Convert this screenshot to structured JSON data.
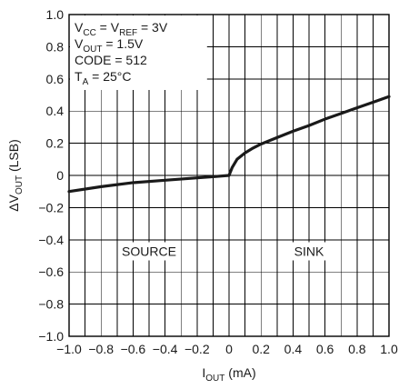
{
  "chart_data": {
    "type": "line",
    "title": "",
    "xlabel": {
      "main": "I",
      "sub": "OUT",
      "tail": " (mA)"
    },
    "ylabel": {
      "pre": "ΔV",
      "sub": "OUT",
      "tail": " (LSB)"
    },
    "xlim": [
      -1.0,
      1.0
    ],
    "ylim": [
      -1.0,
      1.0
    ],
    "x_ticks": [
      -1.0,
      -0.8,
      -0.6,
      -0.4,
      -0.2,
      0,
      0.2,
      0.4,
      0.6,
      0.8,
      1.0
    ],
    "x_tick_labels": [
      "−1.0",
      "−0.8",
      "−0.6",
      "−0.4",
      "−0.2",
      "0",
      "0.2",
      "0.4",
      "0.6",
      "0.8",
      "1.0"
    ],
    "y_ticks": [
      1.0,
      0.8,
      0.6,
      0.4,
      0.2,
      0,
      -0.2,
      -0.4,
      -0.6,
      -0.8,
      -1.0
    ],
    "y_tick_labels": [
      "1.0",
      "0.8",
      "0.6",
      "0.4",
      "0.2",
      "0",
      "−0.2",
      "−0.4",
      "−0.6",
      "−0.8",
      "−1.0"
    ],
    "grid": true,
    "minor_grid": "x-half-steps",
    "series": [
      {
        "x": [
          -1.0,
          -0.8,
          -0.6,
          -0.4,
          -0.2,
          -0.1,
          0.0,
          0.02,
          0.05,
          0.1,
          0.15,
          0.2,
          0.3,
          0.4,
          0.5,
          0.6,
          0.7,
          0.8,
          0.9,
          1.0
        ],
        "y": [
          -0.1,
          -0.07,
          -0.045,
          -0.03,
          -0.015,
          -0.008,
          0.0,
          0.05,
          0.1,
          0.14,
          0.17,
          0.195,
          0.235,
          0.275,
          0.31,
          0.35,
          0.385,
          0.42,
          0.455,
          0.49
        ],
        "color": "#1a1a1a"
      }
    ],
    "legend": {
      "placement": "top-left",
      "lines": [
        {
          "parts": [
            {
              "t": "V"
            },
            {
              "t": "CC",
              "sub": true
            },
            {
              "t": " = V"
            },
            {
              "t": "REF",
              "sub": true
            },
            {
              "t": " = 3V"
            }
          ]
        },
        {
          "parts": [
            {
              "t": "V"
            },
            {
              "t": "OUT",
              "sub": true
            },
            {
              "t": " = 1.5V"
            }
          ]
        },
        {
          "parts": [
            {
              "t": "CODE = 512"
            }
          ]
        },
        {
          "parts": [
            {
              "t": "T"
            },
            {
              "t": "A",
              "sub": true
            },
            {
              "t": " = 25°C"
            }
          ]
        }
      ]
    },
    "annotations": [
      {
        "text": "SOURCE",
        "x": -0.5,
        "y": -0.5
      },
      {
        "text": "SINK",
        "x": 0.5,
        "y": -0.5
      }
    ]
  }
}
